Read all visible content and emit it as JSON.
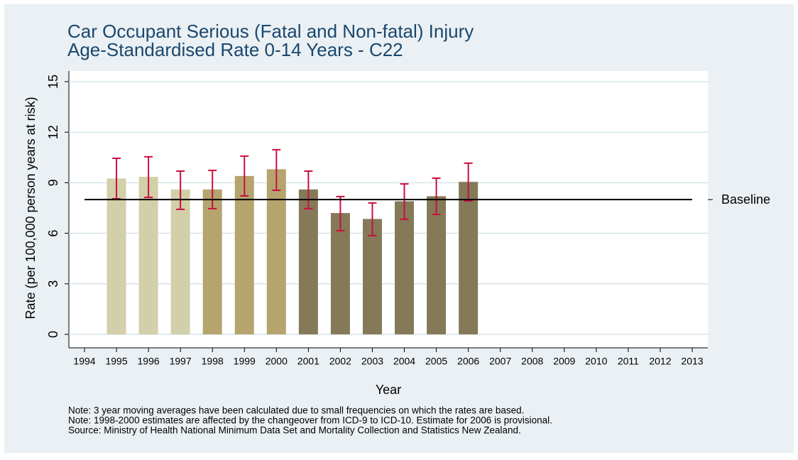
{
  "chart_data": {
    "type": "bar",
    "title_lines": [
      "Car Occupant Serious (Fatal and Non-fatal) Injury",
      "Age-Standardised Rate 0-14 Years - C22"
    ],
    "y_label": "Rate (per 100,000 person years at risk)",
    "x_label": "Year",
    "categories": [
      "1994",
      "1995",
      "1996",
      "1997",
      "1998",
      "1999",
      "2000",
      "2001",
      "2002",
      "2003",
      "2004",
      "2005",
      "2006",
      "2007",
      "2008",
      "2009",
      "2010",
      "2011",
      "2012",
      "2013"
    ],
    "values": [
      null,
      9.25,
      9.35,
      8.6,
      8.6,
      9.4,
      9.8,
      8.6,
      7.2,
      6.85,
      7.9,
      8.2,
      9.05,
      null,
      null,
      null,
      null,
      null,
      null,
      null
    ],
    "ci_lower": [
      null,
      8.05,
      8.13,
      7.42,
      7.46,
      8.22,
      8.55,
      7.46,
      6.15,
      5.86,
      6.83,
      7.12,
      7.92,
      null,
      null,
      null,
      null,
      null,
      null,
      null
    ],
    "ci_upper": [
      null,
      10.45,
      10.54,
      9.69,
      9.73,
      10.58,
      10.96,
      9.69,
      8.18,
      7.8,
      8.93,
      9.27,
      10.16,
      null,
      null,
      null,
      null,
      null,
      null,
      null
    ],
    "colors": [
      null,
      "#d3cfa8",
      "#d3cfa8",
      "#d3cfa8",
      "#b5a46e",
      "#b5a46e",
      "#b5a46e",
      "#857a58",
      "#857a58",
      "#857a58",
      "#857a58",
      "#857a58",
      "#857a58",
      null,
      null,
      null,
      null,
      null,
      null,
      null
    ],
    "error_color": "#c8103e",
    "baseline": {
      "value": 8,
      "label": "Baseline"
    },
    "ylim": [
      0,
      15
    ],
    "yticks": [
      0,
      3,
      6,
      9,
      12,
      15
    ],
    "grid": true,
    "notes": [
      "Note: 3 year moving averages have been calculated due to small frequencies on which the rates are based.",
      "Note: 1998-2000 estimates are affected by the changeover from ICD-9 to ICD-10. Estimate for 2006 is provisional.",
      "Source: Ministry of Health National Minimum Data Set and Mortality Collection and Statistics New Zealand."
    ]
  }
}
